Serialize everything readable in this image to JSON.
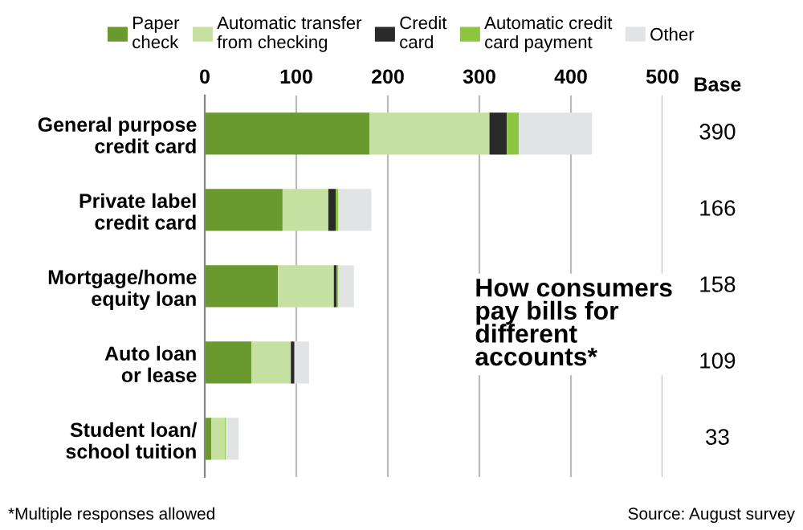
{
  "chart_data": {
    "type": "bar",
    "orientation": "horizontal",
    "stacked": true,
    "title": "How consumers\npay bills for\ndifferent\naccounts*",
    "categories": [
      "General purpose\ncredit card",
      "Private label\ncredit card",
      "Mortgage/home\nequity loan",
      "Auto loan\nor lease",
      "Student loan/\nschool tuition"
    ],
    "series": [
      {
        "name": "Paper\ncheck",
        "color": "#6a9a2f",
        "values": [
          180,
          85,
          80,
          51,
          7
        ]
      },
      {
        "name": "Automatic transfer\nfrom checking",
        "color": "#c5e0a0",
        "values": [
          131,
          50,
          61,
          43,
          15
        ]
      },
      {
        "name": "Credit\ncard",
        "color": "#2b2a2b",
        "values": [
          19,
          8,
          3,
          4,
          0
        ]
      },
      {
        "name": "Automatic credit\ncard payment",
        "color": "#8cc63f",
        "values": [
          13,
          3,
          2,
          0,
          1
        ]
      },
      {
        "name": "Other",
        "color": "#e2e3e4",
        "values": [
          80,
          36,
          17,
          16,
          14
        ]
      }
    ],
    "xlim": [
      0,
      500
    ],
    "xticks": [
      0,
      100,
      200,
      300,
      400,
      500
    ],
    "grid": "x",
    "legend": "top",
    "annotations": [
      "Base",
      "390",
      "166",
      "158",
      "109",
      "33",
      "*Multiple responses allowed",
      "Source: August survey"
    ]
  }
}
